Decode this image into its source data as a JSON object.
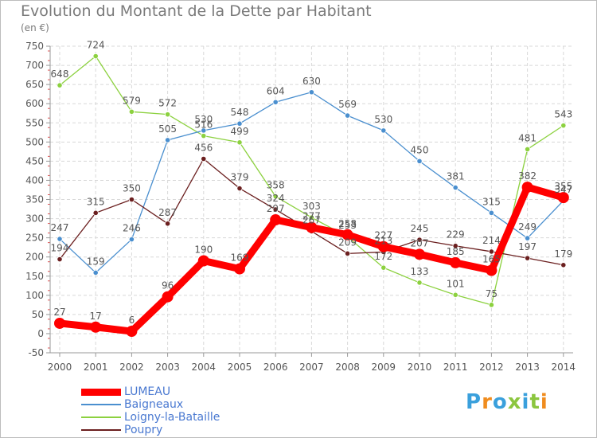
{
  "title": "Evolution du Montant de la Dette par Habitant",
  "subtitle": "(en €)",
  "logo": {
    "text": "Proxiti",
    "colors": [
      "#3aa0dc",
      "#f08c1e",
      "#3aa0dc",
      "#8cc63f",
      "#3aa0dc",
      "#8cc63f",
      "#f08c1e"
    ]
  },
  "chart_data": {
    "type": "line",
    "title": "Evolution du Montant de la Dette par Habitant",
    "ylabel": "(en €)",
    "xlabel": "",
    "ylim": [
      -50,
      750
    ],
    "yticks": [
      -50,
      0,
      50,
      100,
      150,
      200,
      250,
      300,
      350,
      400,
      450,
      500,
      550,
      600,
      650,
      700,
      750
    ],
    "x": [
      "2000",
      "2001",
      "2002",
      "2003",
      "2004",
      "2005",
      "2006",
      "2007",
      "2008",
      "2009",
      "2010",
      "2011",
      "2012",
      "2013",
      "2014"
    ],
    "grid": true,
    "legend": "bottom-left",
    "series": [
      {
        "name": "LUMEAU",
        "color": "#ff0000",
        "values": [
          27,
          17,
          6,
          96,
          190,
          169,
          297,
          277,
          258,
          227,
          207,
          185,
          165,
          382,
          355
        ]
      },
      {
        "name": "Baigneaux",
        "color": "#4a8fcf",
        "values": [
          247,
          159,
          246,
          505,
          530,
          548,
          604,
          630,
          569,
          530,
          450,
          381,
          315,
          249,
          347
        ]
      },
      {
        "name": "Loigny-la-Bataille",
        "color": "#8cd13f",
        "values": [
          648,
          724,
          579,
          572,
          516,
          499,
          358,
          303,
          253,
          172,
          133,
          101,
          75,
          481,
          543
        ]
      },
      {
        "name": "Poupry",
        "color": "#6b1f1f",
        "values": [
          194,
          315,
          350,
          287,
          456,
          379,
          324,
          267,
          209,
          213,
          245,
          229,
          214,
          197,
          179
        ]
      }
    ]
  }
}
